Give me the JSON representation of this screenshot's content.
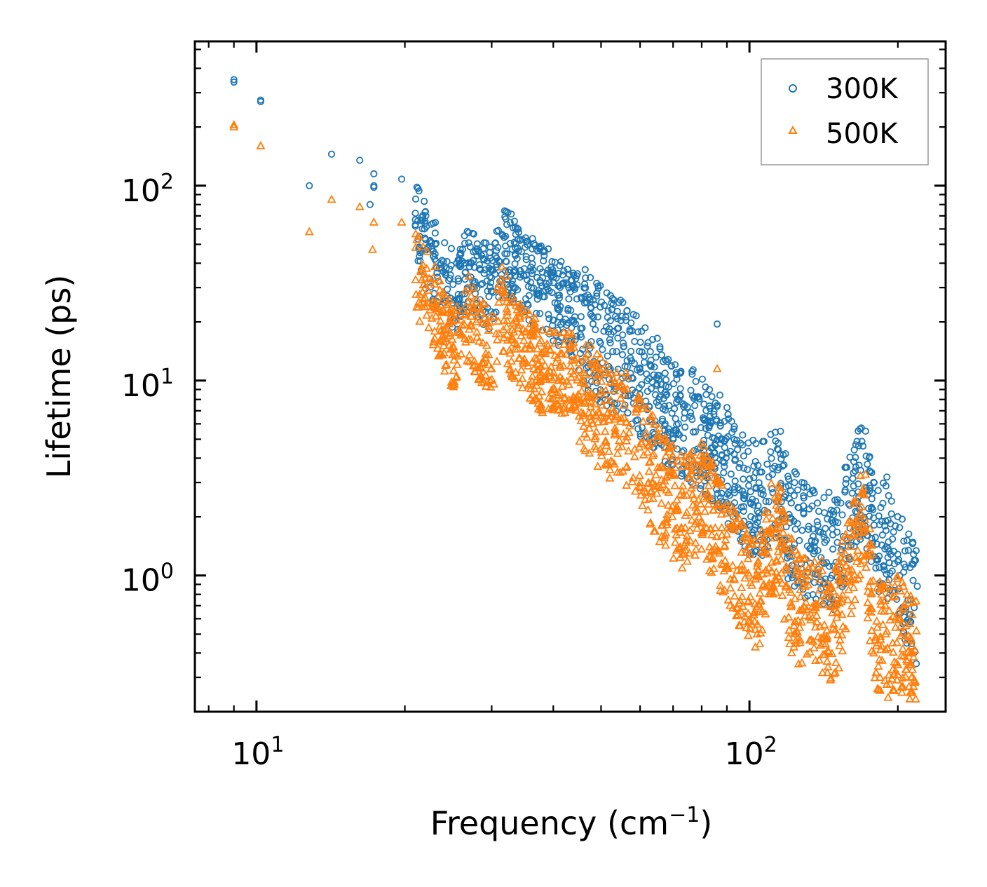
{
  "chart_data": {
    "type": "scatter",
    "title": "",
    "xlabel": "Frequency (cm",
    "xlabel_sup": "−1",
    "xlabel_close": ")",
    "ylabel": "Lifetime (ps)",
    "xscale": "log",
    "yscale": "log",
    "xlim": [
      7.5,
      250
    ],
    "ylim": [
      0.2,
      550
    ],
    "x_tick_labels": [
      {
        "value": 10,
        "base": "10",
        "exp": "1"
      },
      {
        "value": 100,
        "base": "10",
        "exp": "2"
      }
    ],
    "y_tick_labels": [
      {
        "value": 1,
        "base": "10",
        "exp": "0"
      },
      {
        "value": 10,
        "base": "10",
        "exp": "1"
      },
      {
        "value": 100,
        "base": "10",
        "exp": "2"
      }
    ],
    "legend_position": "top-right",
    "series": [
      {
        "name": "300K",
        "marker": "circle",
        "color": "#1f77b4",
        "anchors": [
          [
            9.0,
            350
          ],
          [
            10.2,
            270
          ],
          [
            12.8,
            100
          ],
          [
            14.2,
            145
          ],
          [
            16.2,
            135
          ],
          [
            17.3,
            115
          ],
          [
            17.3,
            100
          ],
          [
            17.0,
            80
          ],
          [
            19.7,
            108
          ],
          [
            21.0,
            70
          ],
          [
            22.5,
            45
          ],
          [
            24.0,
            35
          ],
          [
            25.5,
            30
          ],
          [
            27.0,
            40
          ],
          [
            28.5,
            35
          ],
          [
            30.0,
            30
          ],
          [
            31.5,
            50
          ],
          [
            33.0,
            45
          ],
          [
            35.0,
            35
          ],
          [
            38.0,
            32
          ],
          [
            42.0,
            25
          ],
          [
            45.0,
            22
          ],
          [
            48.0,
            18
          ],
          [
            52.0,
            15
          ],
          [
            56.0,
            14
          ],
          [
            60.0,
            11
          ],
          [
            65.0,
            9
          ],
          [
            70.0,
            7
          ],
          [
            75.0,
            6.5
          ],
          [
            80.0,
            5.8
          ],
          [
            85.0,
            5.0
          ],
          [
            90.0,
            4.0
          ],
          [
            95.0,
            3.3
          ],
          [
            100.0,
            2.7
          ],
          [
            105.0,
            2.6
          ],
          [
            110.0,
            2.8
          ],
          [
            115.0,
            3.4
          ],
          [
            120.0,
            2.0
          ],
          [
            125.0,
            1.8
          ],
          [
            130.0,
            1.6
          ],
          [
            140.0,
            1.5
          ],
          [
            150.0,
            1.4
          ],
          [
            160.0,
            2.4
          ],
          [
            170.0,
            3.5
          ],
          [
            180.0,
            1.7
          ],
          [
            190.0,
            1.6
          ],
          [
            200.0,
            1.2
          ],
          [
            210.0,
            0.9
          ],
          [
            218.0,
            0.75
          ]
        ],
        "outliers": [
          [
            9.0,
            340
          ],
          [
            10.2,
            275
          ],
          [
            17.3,
            98
          ],
          [
            21.0,
            62
          ],
          [
            32.0,
            55
          ],
          [
            33.5,
            48
          ],
          [
            38.0,
            36
          ],
          [
            86.0,
            19.5
          ],
          [
            113.0,
            4.9
          ],
          [
            172.0,
            5.5
          ],
          [
            190.0,
            3.2
          ],
          [
            219.0,
            0.88
          ],
          [
            62.0,
            10.0
          ],
          [
            68.0,
            8.5
          ]
        ]
      },
      {
        "name": "500K",
        "marker": "triangle",
        "color": "#ff7f0e",
        "anchors": [
          [
            9.0,
            205
          ],
          [
            10.2,
            160
          ],
          [
            12.8,
            58
          ],
          [
            14.2,
            85
          ],
          [
            16.2,
            78
          ],
          [
            17.3,
            65
          ],
          [
            17.2,
            47
          ],
          [
            19.7,
            65
          ],
          [
            21.0,
            38
          ],
          [
            23.0,
            26
          ],
          [
            24.0,
            18
          ],
          [
            25.5,
            15
          ],
          [
            27.0,
            22
          ],
          [
            28.5,
            17
          ],
          [
            30.0,
            14
          ],
          [
            31.5,
            25
          ],
          [
            33.0,
            18
          ],
          [
            35.0,
            15
          ],
          [
            38.0,
            12
          ],
          [
            42.0,
            11.5
          ],
          [
            45.0,
            10.5
          ],
          [
            48.0,
            8
          ],
          [
            52.0,
            6.5
          ],
          [
            56.0,
            6.0
          ],
          [
            60.0,
            4.8
          ],
          [
            65.0,
            3.2
          ],
          [
            70.0,
            2.5
          ],
          [
            75.0,
            2.2
          ],
          [
            80.0,
            2.6
          ],
          [
            85.0,
            2.0
          ],
          [
            90.0,
            1.5
          ],
          [
            95.0,
            1.2
          ],
          [
            100.0,
            0.95
          ],
          [
            105.0,
            0.85
          ],
          [
            110.0,
            1.6
          ],
          [
            115.0,
            1.8
          ],
          [
            120.0,
            0.9
          ],
          [
            125.0,
            0.75
          ],
          [
            130.0,
            0.7
          ],
          [
            140.0,
            0.65
          ],
          [
            150.0,
            0.6
          ],
          [
            160.0,
            1.3
          ],
          [
            170.0,
            2.0
          ],
          [
            180.0,
            0.55
          ],
          [
            190.0,
            0.5
          ],
          [
            200.0,
            0.55
          ],
          [
            210.0,
            0.45
          ],
          [
            218.0,
            0.4
          ]
        ],
        "outliers": [
          [
            9.0,
            200
          ],
          [
            10.2,
            160
          ],
          [
            86.0,
            11.5
          ],
          [
            172.0,
            3.3
          ],
          [
            184.0,
            0.3
          ],
          [
            200.0,
            0.31
          ],
          [
            218.0,
            0.52
          ],
          [
            28.5,
            10.5
          ],
          [
            33.5,
            14.5
          ],
          [
            45.0,
            10.4
          ]
        ]
      }
    ]
  }
}
